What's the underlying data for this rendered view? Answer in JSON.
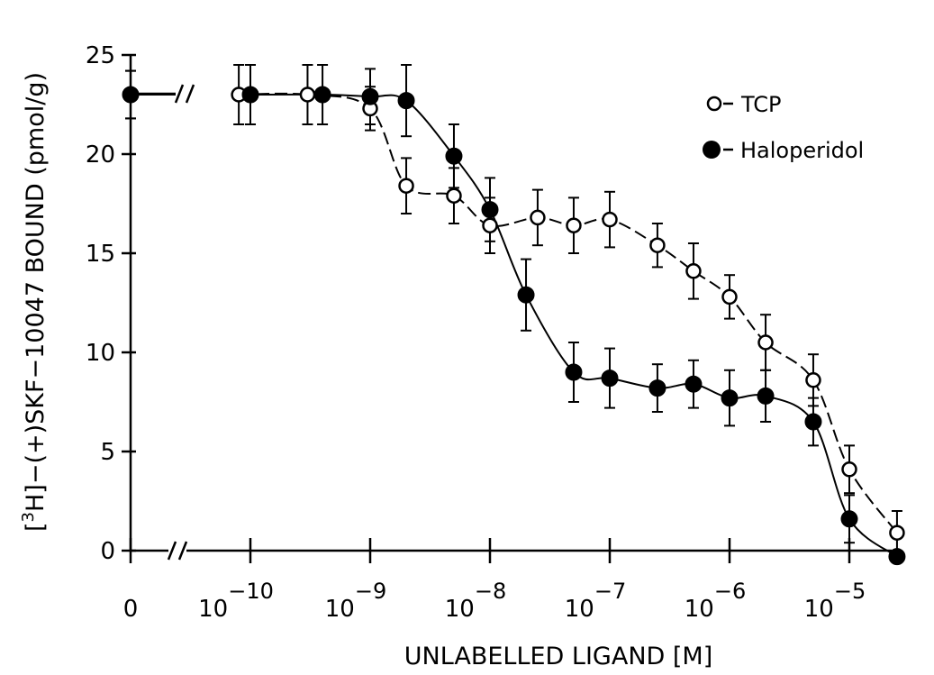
{
  "chart_data": {
    "type": "scatter",
    "xlabel": "UNLABELLED LIGAND [M]",
    "ylabel_prefix": "[",
    "ylabel_sup": "3",
    "ylabel_rest": "H]−(+)SKF−10047 BOUND (pmol/g)",
    "ylim": [
      0,
      25
    ],
    "y_ticks": [
      "0",
      "5",
      "10",
      "15",
      "20",
      "25"
    ],
    "x_tick_labels": [
      {
        "base": "0",
        "exp": "",
        "value": 0
      },
      {
        "base": "10",
        "exp": "−10",
        "value": 1e-10
      },
      {
        "base": "10",
        "exp": "−9",
        "value": 1e-09
      },
      {
        "base": "10",
        "exp": "−8",
        "value": 1e-08
      },
      {
        "base": "10",
        "exp": "−7",
        "value": 1e-07
      },
      {
        "base": "10",
        "exp": "−6",
        "value": 1e-06
      },
      {
        "base": "10",
        "exp": "−5",
        "value": 1e-05
      }
    ],
    "x_scale": "log with axis break between 0 and 10^-10",
    "legend_position": "top-right",
    "series": [
      {
        "name": "TCP",
        "marker": "open-circle",
        "points": [
          {
            "x": 0,
            "y": 23.0,
            "err": 1.2
          },
          {
            "x": 8e-11,
            "y": 23.0,
            "err": 1.5
          },
          {
            "x": 3e-10,
            "y": 23.0,
            "err": 1.5
          },
          {
            "x": 1e-09,
            "y": 22.3,
            "err": 1.1
          },
          {
            "x": 2e-09,
            "y": 18.4,
            "err": 1.4
          },
          {
            "x": 5e-09,
            "y": 17.9,
            "err": 1.4
          },
          {
            "x": 1e-08,
            "y": 16.4,
            "err": 1.4
          },
          {
            "x": 2.5e-08,
            "y": 16.8,
            "err": 1.4
          },
          {
            "x": 5e-08,
            "y": 16.4,
            "err": 1.4
          },
          {
            "x": 1e-07,
            "y": 16.7,
            "err": 1.4
          },
          {
            "x": 2.5e-07,
            "y": 15.4,
            "err": 1.1
          },
          {
            "x": 5e-07,
            "y": 14.1,
            "err": 1.4
          },
          {
            "x": 1e-06,
            "y": 12.8,
            "err": 1.1
          },
          {
            "x": 2e-06,
            "y": 10.5,
            "err": 1.4
          },
          {
            "x": 5e-06,
            "y": 8.6,
            "err": 1.3
          },
          {
            "x": 1e-05,
            "y": 4.1,
            "err": 1.2
          },
          {
            "x": 2.5e-05,
            "y": 0.9,
            "err": 1.1
          }
        ]
      },
      {
        "name": "Haloperidol",
        "marker": "filled-circle",
        "points": [
          {
            "x": 0,
            "y": 23.0,
            "err": 1.2
          },
          {
            "x": 1e-10,
            "y": 23.0,
            "err": 1.5
          },
          {
            "x": 4e-10,
            "y": 23.0,
            "err": 1.5
          },
          {
            "x": 1e-09,
            "y": 22.9,
            "err": 1.4
          },
          {
            "x": 2e-09,
            "y": 22.7,
            "err": 1.8
          },
          {
            "x": 5e-09,
            "y": 19.9,
            "err": 1.6
          },
          {
            "x": 1e-08,
            "y": 17.2,
            "err": 1.6
          },
          {
            "x": 2e-08,
            "y": 12.9,
            "err": 1.8
          },
          {
            "x": 5e-08,
            "y": 9.0,
            "err": 1.5
          },
          {
            "x": 1e-07,
            "y": 8.7,
            "err": 1.5
          },
          {
            "x": 2.5e-07,
            "y": 8.2,
            "err": 1.2
          },
          {
            "x": 5e-07,
            "y": 8.4,
            "err": 1.2
          },
          {
            "x": 1e-06,
            "y": 7.7,
            "err": 1.4
          },
          {
            "x": 2e-06,
            "y": 7.8,
            "err": 1.3
          },
          {
            "x": 5e-06,
            "y": 6.5,
            "err": 1.2
          },
          {
            "x": 1e-05,
            "y": 1.6,
            "err": 1.2
          },
          {
            "x": 2.5e-05,
            "y": -0.3,
            "err": 0.0
          }
        ]
      }
    ]
  }
}
